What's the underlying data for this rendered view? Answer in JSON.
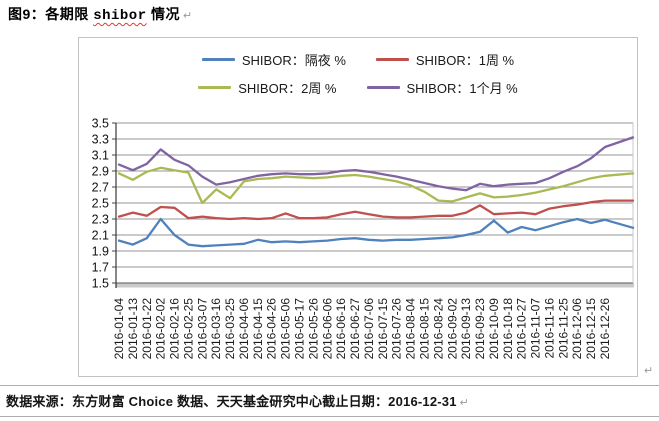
{
  "title": {
    "prefix": "图9：各期限 ",
    "keyword": "shibor",
    "suffix": " 情况"
  },
  "para_marks": {
    "after_title": "↵",
    "after_chart": "↵",
    "after_source": "↵"
  },
  "source_line": "数据来源：东方财富 Choice 数据、天天基金研究中心截止日期：2016-12-31",
  "chart_data": {
    "type": "line",
    "title": "",
    "xlabel": "",
    "ylabel": "",
    "ylim": [
      1.5,
      3.5
    ],
    "y_ticks": [
      "1.5",
      "1.7",
      "1.9",
      "2.1",
      "2.3",
      "2.5",
      "2.7",
      "2.9",
      "3.1",
      "3.3",
      "3.5"
    ],
    "grid": true,
    "legend_position": "top",
    "note": "lines extend one unlabeled trading point past the last category (to 2016-12-30)",
    "categories": [
      "2016-01-04",
      "2016-01-13",
      "2016-01-22",
      "2016-02-02",
      "2016-02-16",
      "2016-02-25",
      "2016-03-07",
      "2016-03-16",
      "2016-03-25",
      "2016-04-06",
      "2016-04-15",
      "2016-04-26",
      "2016-05-06",
      "2016-05-17",
      "2016-05-26",
      "2016-06-06",
      "2016-06-16",
      "2016-06-27",
      "2016-07-06",
      "2016-07-15",
      "2016-07-26",
      "2016-08-04",
      "2016-08-15",
      "2016-08-24",
      "2016-09-02",
      "2016-09-13",
      "2016-09-23",
      "2016-10-09",
      "2016-10-18",
      "2016-10-27",
      "2016-11-07",
      "2016-11-16",
      "2016-11-25",
      "2016-12-06",
      "2016-12-15",
      "2016-12-26"
    ],
    "series": [
      {
        "name": "SHIBOR：隔夜 %",
        "color": "#4F81BD",
        "values": [
          2.03,
          1.98,
          2.06,
          2.3,
          2.1,
          1.98,
          1.96,
          1.97,
          1.98,
          1.99,
          2.04,
          2.01,
          2.02,
          2.01,
          2.02,
          2.03,
          2.05,
          2.06,
          2.04,
          2.03,
          2.04,
          2.04,
          2.05,
          2.06,
          2.07,
          2.1,
          2.14,
          2.28,
          2.13,
          2.2,
          2.16,
          2.21,
          2.26,
          2.3,
          2.25,
          2.29,
          2.19
        ]
      },
      {
        "name": "SHIBOR：1周 %",
        "color": "#C0504D",
        "values": [
          2.33,
          2.38,
          2.34,
          2.45,
          2.44,
          2.31,
          2.33,
          2.31,
          2.3,
          2.31,
          2.3,
          2.31,
          2.37,
          2.31,
          2.31,
          2.32,
          2.36,
          2.39,
          2.36,
          2.33,
          2.32,
          2.32,
          2.33,
          2.34,
          2.34,
          2.38,
          2.47,
          2.36,
          2.37,
          2.38,
          2.36,
          2.43,
          2.46,
          2.48,
          2.51,
          2.53,
          2.53
        ]
      },
      {
        "name": "SHIBOR：2周 %",
        "color": "#ABB954",
        "values": [
          2.87,
          2.79,
          2.89,
          2.94,
          2.91,
          2.88,
          2.5,
          2.67,
          2.56,
          2.77,
          2.8,
          2.81,
          2.83,
          2.82,
          2.81,
          2.82,
          2.84,
          2.85,
          2.83,
          2.8,
          2.77,
          2.72,
          2.64,
          2.53,
          2.52,
          2.57,
          2.62,
          2.57,
          2.58,
          2.6,
          2.63,
          2.67,
          2.71,
          2.76,
          2.81,
          2.84,
          2.87
        ]
      },
      {
        "name": "SHIBOR：1个月 %",
        "color": "#8064A2",
        "values": [
          2.98,
          2.91,
          2.99,
          3.17,
          3.04,
          2.97,
          2.83,
          2.73,
          2.76,
          2.8,
          2.84,
          2.86,
          2.87,
          2.86,
          2.86,
          2.87,
          2.9,
          2.91,
          2.89,
          2.86,
          2.83,
          2.79,
          2.75,
          2.71,
          2.68,
          2.66,
          2.74,
          2.71,
          2.73,
          2.74,
          2.75,
          2.81,
          2.89,
          2.96,
          3.06,
          3.2,
          3.32
        ]
      }
    ]
  }
}
